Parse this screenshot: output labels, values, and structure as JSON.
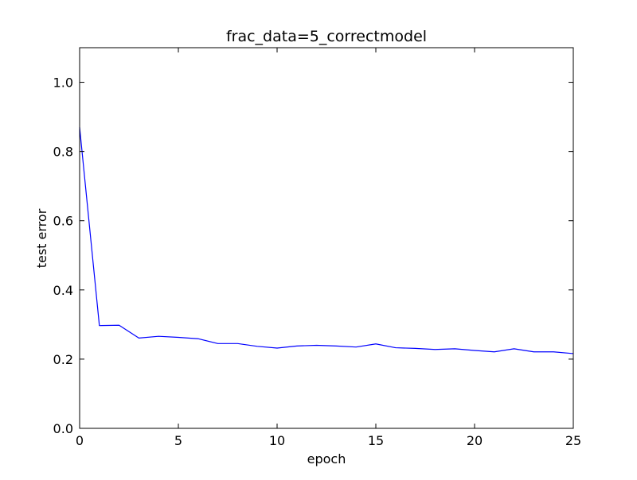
{
  "chart_data": {
    "type": "line",
    "title": "frac_data=5_correctmodel",
    "xlabel": "epoch",
    "ylabel": "test error",
    "xlim": [
      0,
      25
    ],
    "ylim": [
      0,
      1.1
    ],
    "xticks": [
      0,
      5,
      10,
      15,
      20,
      25
    ],
    "xtick_labels": [
      "0",
      "5",
      "10",
      "15",
      "20",
      "25"
    ],
    "yticks": [
      0.0,
      0.2,
      0.4,
      0.6,
      0.8,
      1.0
    ],
    "ytick_labels": [
      "0.0",
      "0.2",
      "0.4",
      "0.6",
      "0.8",
      "1.0"
    ],
    "grid": false,
    "series": [
      {
        "color": "#0000ff",
        "x": [
          0,
          1,
          2,
          3,
          4,
          5,
          6,
          7,
          8,
          9,
          10,
          11,
          12,
          13,
          14,
          15,
          16,
          17,
          18,
          19,
          20,
          21,
          22,
          23,
          24,
          25
        ],
        "y": [
          0.87,
          0.297,
          0.298,
          0.261,
          0.266,
          0.263,
          0.259,
          0.245,
          0.245,
          0.237,
          0.232,
          0.238,
          0.24,
          0.238,
          0.235,
          0.244,
          0.233,
          0.231,
          0.228,
          0.23,
          0.225,
          0.221,
          0.23,
          0.221,
          0.221,
          0.216
        ]
      }
    ]
  }
}
